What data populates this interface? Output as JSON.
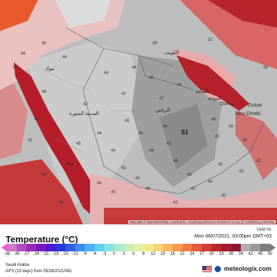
{
  "map": {
    "cities": [
      {
        "name": "الكويت"
      },
      {
        "name": "المنامة"
      },
      {
        "name": "الدوحة"
      },
      {
        "name": "Doha"
      },
      {
        "name": "Abu Dhabi"
      },
      {
        "name": "Dubai"
      },
      {
        "name": "الرياض"
      },
      {
        "name": "المدينة المنورة"
      },
      {
        "name": "مكة"
      },
      {
        "name": "تبوك"
      }
    ],
    "temperature_values": [
      "44",
      "46",
      "43",
      "42",
      "45",
      "44",
      "46",
      "47",
      "48",
      "49",
      "44",
      "45",
      "44",
      "42",
      "44",
      "44",
      "34",
      "36",
      "40",
      "44",
      "45",
      "44",
      "43",
      "45",
      "36",
      "46",
      "45",
      "44",
      "43",
      "42",
      "38",
      "42",
      "43",
      "39",
      "32",
      "43",
      "43",
      "41",
      "40",
      "46",
      "42",
      "46",
      "44",
      "45",
      "38"
    ],
    "max_value": "51",
    "attribution": "Map data © OpenStreetMap contributors, rendering GIScience Research Group @ Heidelberg University"
  },
  "header": {
    "title": "Temperature (°C)",
    "valid_label": "Valid for",
    "valid_time": "Mon 06/07/2021, 03:00pm GMT+03"
  },
  "scale": {
    "ticks": [
      "-36",
      "-30",
      "-27",
      "-24",
      "-21",
      "-18",
      "-15",
      "-12",
      "-9",
      "-6",
      "-3",
      "0",
      "3",
      "6",
      "9",
      "12",
      "15",
      "18",
      "21",
      "24",
      "27",
      "30",
      "33",
      "36",
      "39",
      "42",
      "45",
      "50"
    ],
    "colors": [
      "#c77dc6",
      "#b14fbf",
      "#9c28b7",
      "#7a18c0",
      "#4d1ad0",
      "#2836dc",
      "#2f5fe6",
      "#3a8ced",
      "#4cb0ef",
      "#5fd0ee",
      "#86e3e2",
      "#a8ebd0",
      "#c9efb8",
      "#e6f0a0",
      "#f6e88a",
      "#fbd474",
      "#fbb85f",
      "#f79a4f",
      "#f07a44",
      "#e45a3a",
      "#d23c33",
      "#bb2630",
      "#a21a2e",
      "#8a1530",
      "#b0b0b0",
      "#9a9a9a",
      "#7d7d7d"
    ],
    "low_color": "#ff4fd8",
    "high_color": "#7a7a7a"
  },
  "footer": {
    "region": "Saudi Arabia",
    "model": "GFS (15 days) from 05/29/2021/06z",
    "brand": "meteologix.com"
  }
}
